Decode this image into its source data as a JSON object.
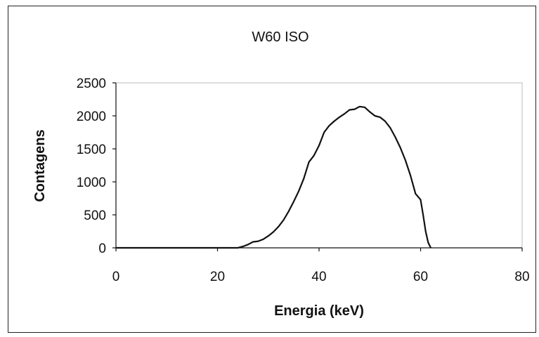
{
  "chart_data": {
    "type": "line",
    "title": "W60 ISO",
    "xlabel": "Energia (keV)",
    "ylabel": "Contagens",
    "xlim": [
      0,
      80
    ],
    "ylim": [
      0,
      2500
    ],
    "x_ticks": [
      "0",
      "20",
      "40",
      "60",
      "80"
    ],
    "y_ticks": [
      "0",
      "500",
      "1000",
      "1500",
      "2000",
      "2500"
    ],
    "grid": false,
    "legend": "none",
    "series": [
      {
        "color": "#111111",
        "points": [
          [
            0,
            0
          ],
          [
            5,
            0
          ],
          [
            10,
            0
          ],
          [
            15,
            0
          ],
          [
            20,
            0
          ],
          [
            24,
            0
          ],
          [
            25,
            20
          ],
          [
            26,
            50
          ],
          [
            27,
            90
          ],
          [
            28,
            100
          ],
          [
            29,
            130
          ],
          [
            30,
            180
          ],
          [
            31,
            240
          ],
          [
            32,
            320
          ],
          [
            33,
            420
          ],
          [
            34,
            550
          ],
          [
            35,
            700
          ],
          [
            36,
            860
          ],
          [
            37,
            1050
          ],
          [
            38,
            1300
          ],
          [
            39,
            1400
          ],
          [
            40,
            1550
          ],
          [
            41,
            1750
          ],
          [
            42,
            1850
          ],
          [
            43,
            1920
          ],
          [
            44,
            1980
          ],
          [
            45,
            2030
          ],
          [
            46,
            2090
          ],
          [
            47,
            2100
          ],
          [
            48,
            2140
          ],
          [
            49,
            2130
          ],
          [
            50,
            2060
          ],
          [
            51,
            2000
          ],
          [
            52,
            1980
          ],
          [
            53,
            1920
          ],
          [
            54,
            1820
          ],
          [
            55,
            1680
          ],
          [
            56,
            1520
          ],
          [
            57,
            1330
          ],
          [
            58,
            1100
          ],
          [
            59,
            820
          ],
          [
            60,
            730
          ],
          [
            60.5,
            500
          ],
          [
            61,
            250
          ],
          [
            61.5,
            80
          ],
          [
            62,
            0
          ]
        ]
      }
    ]
  }
}
